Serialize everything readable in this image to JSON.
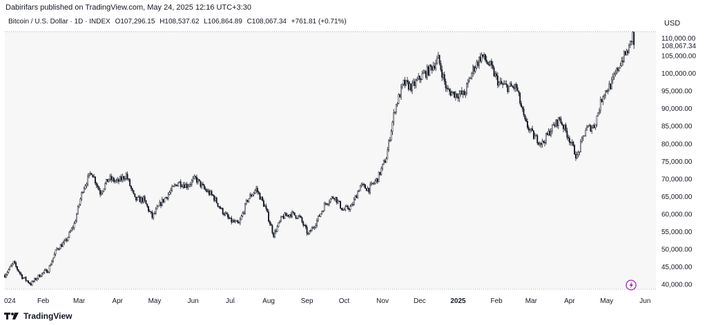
{
  "header": {
    "published": "Dabirifars published on TradingView.com, May 24, 2025 12:16 UTC+3:30"
  },
  "legend": {
    "symbol": "Bitcoin / U.S. Dollar · 1D · INDEX",
    "open": "O107,296.15",
    "high": "H108,537.62",
    "low": "L106,864.89",
    "close": "C108,067.34",
    "change": "+761.81 (+0.71%)"
  },
  "currency_label": "USD",
  "footer": {
    "brand": "TradingView"
  },
  "colors": {
    "candle": "#131722",
    "background": "#f7f7f7",
    "axis_text": "#131722",
    "lightning": "#9c27b0"
  },
  "icons": {
    "lightning": "lightning-icon",
    "brand_logo": "tradingview-logo-icon"
  },
  "chart_data": {
    "type": "candlestick",
    "symbol": "BTCUSD",
    "interval": "1D",
    "x_labels": [
      "024",
      "Feb",
      "Mar",
      "Apr",
      "May",
      "Jun",
      "Jul",
      "Aug",
      "Sep",
      "Oct",
      "Nov",
      "Dec",
      "2025",
      "Feb",
      "Mar",
      "Apr",
      "May",
      "Jun"
    ],
    "y_ticks": [
      "110,000.00",
      "105,000.00",
      "100,000.00",
      "95,000.00",
      "90,000.00",
      "85,000.00",
      "80,000.00",
      "75,000.00",
      "70,000.00",
      "65,000.00",
      "60,000.00",
      "55,000.00",
      "50,000.00",
      "45,000.00",
      "40,000.00"
    ],
    "y_tick_values": [
      110000,
      105000,
      100000,
      95000,
      90000,
      85000,
      80000,
      75000,
      70000,
      65000,
      60000,
      55000,
      50000,
      45000,
      40000
    ],
    "last_price_label": "108,067.34",
    "last_price": 108067.34,
    "ylim": [
      38500,
      111800
    ],
    "grid": false,
    "approx_close_path": [
      [
        "2024-01-01",
        42500
      ],
      [
        "2024-01-08",
        46000
      ],
      [
        "2024-01-15",
        42000
      ],
      [
        "2024-01-22",
        40000
      ],
      [
        "2024-01-29",
        42500
      ],
      [
        "2024-02-05",
        44000
      ],
      [
        "2024-02-12",
        50000
      ],
      [
        "2024-02-19",
        52000
      ],
      [
        "2024-02-26",
        57000
      ],
      [
        "2024-03-04",
        67000
      ],
      [
        "2024-03-11",
        72000
      ],
      [
        "2024-03-18",
        66000
      ],
      [
        "2024-03-25",
        70000
      ],
      [
        "2024-04-01",
        69000
      ],
      [
        "2024-04-08",
        71000
      ],
      [
        "2024-04-15",
        64000
      ],
      [
        "2024-04-22",
        64000
      ],
      [
        "2024-04-29",
        59000
      ],
      [
        "2024-05-06",
        63000
      ],
      [
        "2024-05-13",
        66000
      ],
      [
        "2024-05-20",
        69000
      ],
      [
        "2024-05-27",
        68000
      ],
      [
        "2024-06-03",
        70000
      ],
      [
        "2024-06-10",
        67000
      ],
      [
        "2024-06-17",
        65000
      ],
      [
        "2024-06-24",
        61000
      ],
      [
        "2024-07-01",
        58000
      ],
      [
        "2024-07-08",
        57000
      ],
      [
        "2024-07-15",
        64000
      ],
      [
        "2024-07-22",
        67000
      ],
      [
        "2024-07-29",
        62000
      ],
      [
        "2024-08-05",
        54000
      ],
      [
        "2024-08-12",
        59000
      ],
      [
        "2024-08-19",
        60000
      ],
      [
        "2024-08-26",
        59000
      ],
      [
        "2024-09-02",
        54000
      ],
      [
        "2024-09-09",
        58000
      ],
      [
        "2024-09-16",
        63000
      ],
      [
        "2024-09-23",
        65000
      ],
      [
        "2024-09-30",
        61000
      ],
      [
        "2024-10-07",
        62000
      ],
      [
        "2024-10-14",
        68000
      ],
      [
        "2024-10-21",
        67000
      ],
      [
        "2024-10-28",
        70000
      ],
      [
        "2024-11-04",
        76000
      ],
      [
        "2024-11-11",
        90000
      ],
      [
        "2024-11-18",
        97000
      ],
      [
        "2024-11-25",
        96000
      ],
      [
        "2024-12-02",
        99000
      ],
      [
        "2024-12-09",
        101000
      ],
      [
        "2024-12-16",
        104000
      ],
      [
        "2024-12-23",
        95000
      ],
      [
        "2024-12-30",
        94000
      ],
      [
        "2025-01-06",
        94000
      ],
      [
        "2025-01-13",
        101000
      ],
      [
        "2025-01-20",
        105000
      ],
      [
        "2025-01-27",
        102000
      ],
      [
        "2025-02-03",
        97000
      ],
      [
        "2025-02-10",
        96000
      ],
      [
        "2025-02-17",
        96000
      ],
      [
        "2025-02-24",
        86000
      ],
      [
        "2025-03-03",
        82000
      ],
      [
        "2025-03-10",
        80000
      ],
      [
        "2025-03-17",
        84000
      ],
      [
        "2025-03-24",
        87000
      ],
      [
        "2025-03-31",
        82000
      ],
      [
        "2025-04-07",
        76000
      ],
      [
        "2025-04-14",
        84000
      ],
      [
        "2025-04-21",
        85000
      ],
      [
        "2025-04-28",
        94000
      ],
      [
        "2025-05-05",
        97000
      ],
      [
        "2025-05-12",
        103000
      ],
      [
        "2025-05-19",
        107000
      ],
      [
        "2025-05-22",
        111000
      ],
      [
        "2025-05-23",
        108067
      ]
    ]
  }
}
